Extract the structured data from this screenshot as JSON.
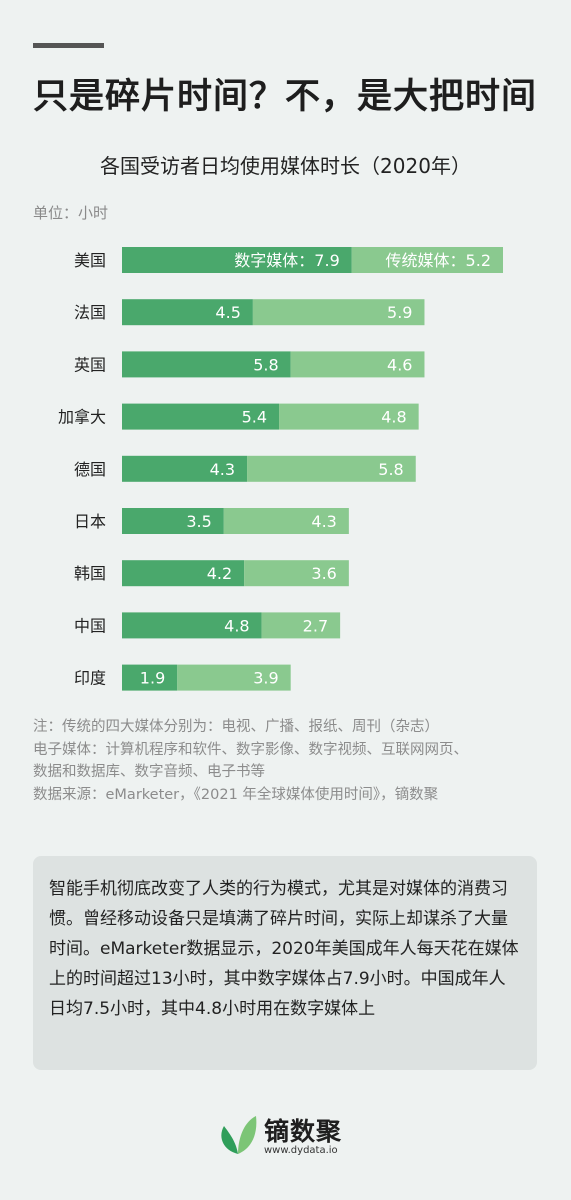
{
  "headline": "只是碎片时间？不，是大把时间",
  "chart_data": {
    "type": "bar",
    "stacked": true,
    "orientation": "horizontal",
    "title": "各国受访者日均使用媒体时长（2020年）",
    "unit": "单位：小时",
    "categories": [
      "美国",
      "法国",
      "英国",
      "加拿大",
      "德国",
      "日本",
      "韩国",
      "中国",
      "印度"
    ],
    "series": [
      {
        "name": "数字媒体",
        "values": [
          7.9,
          4.5,
          5.8,
          5.4,
          4.3,
          3.5,
          4.2,
          4.8,
          1.9
        ],
        "color": "#4aa86c"
      },
      {
        "name": "传统媒体",
        "values": [
          5.2,
          5.9,
          4.6,
          4.8,
          5.8,
          4.3,
          3.6,
          2.7,
          3.9
        ],
        "color": "#8ac98f"
      }
    ],
    "first_row_label_prefix_separator": "：",
    "xlim": [
      0,
      13.1
    ],
    "grid": false
  },
  "notes": [
    "注：传统的四大媒体分别为：电视、广播、报纸、周刊（杂志）",
    "电子媒体：计算机程序和软件、数字影像、数字视频、互联网网页、",
    "数据和数据库、数字音频、电子书等",
    "数据来源：eMarketer，《2021 年全球媒体使用时间》，镝数聚"
  ],
  "summary": "智能手机彻底改变了人类的行为模式，尤其是对媒体的消费习惯。曾经移动设备只是填满了碎片时间，实际上却谋杀了大量时间。eMarketer数据显示，2020年美国成年人每天花在媒体上的时间超过13小时，其中数字媒体占7.9小时。中国成年人日均7.5小时，其中4.8小时用在数字媒体上",
  "logo": {
    "name": "镝数聚",
    "url": "www.dydata.io",
    "colors": [
      "#2f9e5a",
      "#7cc576"
    ]
  }
}
